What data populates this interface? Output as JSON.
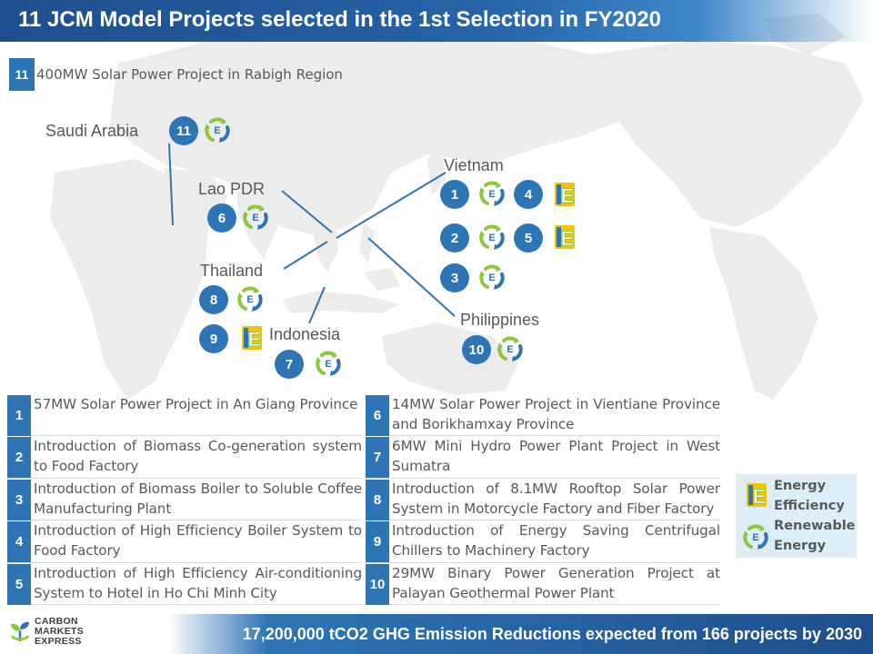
{
  "title": "11 JCM Model Projects selected in the 1st Selection in FY2020",
  "top_project": {
    "num": "11",
    "text": "400MW Solar Power Project in Rabigh Region"
  },
  "countries": {
    "saudi": "Saudi   Arabia",
    "laos": "Lao PDR",
    "vietnam": "Vietnam",
    "thailand": "Thailand",
    "indonesia": "Indonesia",
    "philippines": "Philippines"
  },
  "pins": [
    "11",
    "6",
    "1",
    "4",
    "2",
    "5",
    "3",
    "8",
    "9",
    "7",
    "10"
  ],
  "projects_left": [
    {
      "num": "1",
      "text": "57MW Solar Power Project in An Giang Province"
    },
    {
      "num": "2",
      "text": "Introduction of Biomass Co-generation system to Food Factory"
    },
    {
      "num": "3",
      "text": "Introduction of Biomass Boiler to Soluble Coffee Manufacturing Plant"
    },
    {
      "num": "4",
      "text": "Introduction of High Efficiency Boiler System to Food Factory"
    },
    {
      "num": "5",
      "text": "Introduction of High Efficiency Air-conditioning System to Hotel in Ho Chi Minh City"
    }
  ],
  "projects_right": [
    {
      "num": "6",
      "text": "14MW Solar Power Project in Vientiane Province and Borikhamxay Province"
    },
    {
      "num": "7",
      "text": "6MW Mini Hydro Power Plant Project in West Sumatra"
    },
    {
      "num": "8",
      "text": "Introduction of 8.1MW Rooftop Solar Power System in Motorcycle Factory and Fiber Factory"
    },
    {
      "num": "9",
      "text": "Introduction of Energy Saving Centrifugal Chillers to Machinery Factory"
    },
    {
      "num": "10",
      "text": "29MW Binary Power Generation Project at Palayan Geothermal Power Plant"
    }
  ],
  "legend": {
    "ee_line1": "Energy",
    "ee_line2": "Efficiency",
    "re_line1": "Renewable",
    "re_line2": "Energy"
  },
  "icon_letter": "E",
  "footer": "17,200,000 tCO2 GHG Emission Reductions expected from 166 projects by 2030",
  "logo": {
    "line1": "CARBON",
    "line2": "MARKETS",
    "line3": "EXPRESS"
  },
  "colors": {
    "accent": "#2e75b6",
    "title_bar": "#1f4e8c",
    "energy_efficiency": "#f2c300",
    "renewable_green": "#8dc63f",
    "renewable_blue": "#2e75b6",
    "map": "#eeeeee",
    "legend_bg": "#ddeef8"
  }
}
